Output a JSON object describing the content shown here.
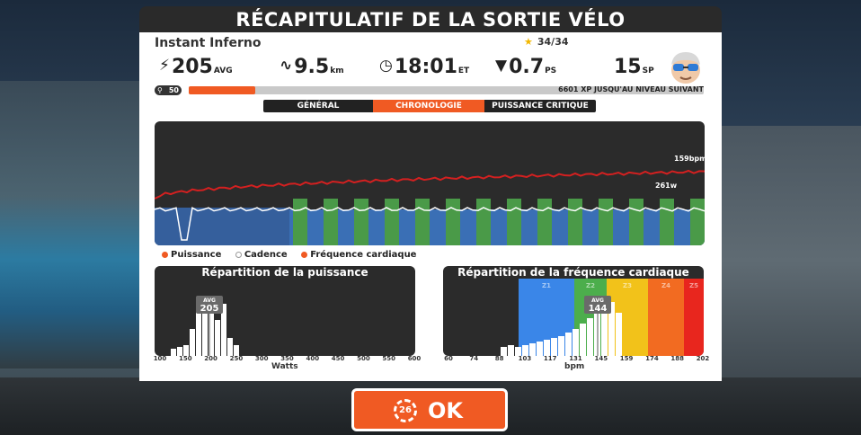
{
  "window": {
    "title": "RÉCAPITULATIF DE LA SORTIE VÉLO"
  },
  "route": {
    "name": "Instant Inferno"
  },
  "badge": {
    "text": "34/34"
  },
  "stats": {
    "power": {
      "value": "205",
      "unit": "AVG",
      "icon": "lightning-icon"
    },
    "distance": {
      "value": "9.5",
      "unit": "km",
      "icon": "route-icon"
    },
    "time": {
      "value": "18:01",
      "unit": "ET",
      "icon": "clock-icon"
    },
    "pizza": {
      "value": "0.7",
      "unit": "PS",
      "icon": "pizza-icon"
    },
    "sp": {
      "value": "15",
      "unit": "SP"
    }
  },
  "level": {
    "value": "50"
  },
  "xp": {
    "progress": 0.13,
    "text": "6601 XP JUSQU'AU NIVEAU SUIVANT"
  },
  "tabs": [
    {
      "label": "GÉNÉRAL",
      "active": false
    },
    {
      "label": "CHRONOLOGIE",
      "active": true
    },
    {
      "label": "PUISSANCE CRITIQUE",
      "active": false
    }
  ],
  "timeline": {
    "hr_label": "159bpm",
    "peak_label": "261w",
    "colors": {
      "power": "#3a6fb5",
      "interval": "#4a9a48",
      "peak": "#a8a03a",
      "hr": "#d42020"
    }
  },
  "legend": {
    "power": "Puissance",
    "cadence": "Cadence",
    "hr": "Fréquence cardiaque"
  },
  "power_dist": {
    "title": "Répartition de la puissance",
    "xlabel": "Watts",
    "ticks": [
      "100",
      "150",
      "200",
      "250",
      "300",
      "350",
      "400",
      "450",
      "500",
      "550",
      "600"
    ],
    "avg_label": "AVG",
    "avg_value": "205"
  },
  "hr_dist": {
    "title": "Répartition de la fréquence cardiaque",
    "xlabel": "bpm",
    "ticks": [
      "60",
      "74",
      "88",
      "103",
      "117",
      "131",
      "145",
      "159",
      "174",
      "188",
      "202"
    ],
    "zones": [
      "Z1",
      "Z2",
      "Z3",
      "Z4",
      "Z5"
    ],
    "zone_colors": [
      "#3a86e8",
      "#4cae4c",
      "#f2c21a",
      "#f26b21",
      "#e8261e"
    ],
    "avg_label": "AVG",
    "avg_value": "144"
  },
  "ok_button": {
    "label": "OK",
    "countdown": "26"
  }
}
